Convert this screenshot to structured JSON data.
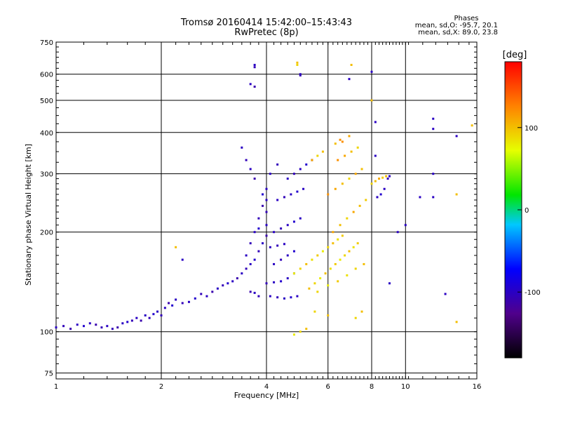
{
  "header": {
    "title": "Tromsø 20160414 15:42:00–15:43:43",
    "subtitle": "RwPretec (8p)"
  },
  "stats": {
    "heading": "Phases",
    "line_o": "mean, sd,O: -95.7, 20.1",
    "line_x": "mean, sd,X: 89.0, 23.8"
  },
  "chart_data": {
    "type": "scatter",
    "xlabel": "Frequency [MHz]",
    "ylabel": "Stationary phase Virtual Height [km]",
    "x_scale": "log",
    "y_scale": "log",
    "xlim": [
      1,
      16
    ],
    "ylim": [
      72,
      750
    ],
    "x_ticks": [
      1,
      2,
      4,
      6,
      8,
      10,
      16
    ],
    "x_tick_labels": [
      "1",
      "2",
      "4",
      "6",
      "8",
      "10",
      "16"
    ],
    "y_ticks": [
      75,
      100,
      200,
      300,
      400,
      500,
      600,
      750
    ],
    "y_tick_labels": [
      "75",
      "100",
      "200",
      "300",
      "400",
      "500",
      "600",
      "750"
    ],
    "grid": true,
    "colorbar": {
      "label": "[deg]",
      "range": [
        -180,
        180
      ],
      "ticks": [
        100,
        0,
        -100
      ],
      "tick_labels": [
        "100",
        "0",
        "-100"
      ]
    },
    "series": [
      {
        "columns": [
          "freq_MHz",
          "height_km",
          "phase_deg"
        ],
        "points": [
          [
            1.0,
            103,
            -100
          ],
          [
            1.05,
            104,
            -105
          ],
          [
            1.1,
            102,
            -110
          ],
          [
            1.15,
            105,
            -100
          ],
          [
            1.2,
            104,
            -95
          ],
          [
            1.25,
            106,
            -100
          ],
          [
            1.3,
            105,
            -110
          ],
          [
            1.35,
            103,
            -105
          ],
          [
            1.4,
            104,
            -100
          ],
          [
            1.45,
            102,
            -105
          ],
          [
            1.5,
            103,
            -110
          ],
          [
            1.55,
            106,
            -100
          ],
          [
            1.6,
            107,
            -95
          ],
          [
            1.65,
            108,
            -105
          ],
          [
            1.7,
            110,
            -100
          ],
          [
            1.75,
            108,
            -110
          ],
          [
            1.8,
            112,
            -100
          ],
          [
            1.85,
            110,
            -105
          ],
          [
            1.9,
            113,
            -95
          ],
          [
            1.95,
            115,
            -100
          ],
          [
            2.0,
            112,
            -105
          ],
          [
            2.05,
            118,
            -100
          ],
          [
            2.1,
            122,
            -110
          ],
          [
            2.15,
            120,
            -95
          ],
          [
            2.2,
            125,
            -100
          ],
          [
            2.3,
            122,
            -105
          ],
          [
            2.4,
            123,
            -100
          ],
          [
            2.5,
            126,
            -95
          ],
          [
            2.6,
            130,
            -105
          ],
          [
            2.7,
            128,
            -100
          ],
          [
            2.8,
            132,
            -110
          ],
          [
            2.9,
            135,
            -100
          ],
          [
            3.0,
            138,
            -105
          ],
          [
            3.1,
            140,
            -95
          ],
          [
            3.2,
            142,
            -100
          ],
          [
            3.3,
            145,
            -110
          ],
          [
            3.4,
            150,
            -100
          ],
          [
            3.5,
            155,
            -105
          ],
          [
            3.6,
            160,
            -100
          ],
          [
            3.7,
            165,
            -95
          ],
          [
            3.8,
            175,
            -105
          ],
          [
            3.9,
            185,
            -100
          ],
          [
            4.0,
            195,
            -110
          ],
          [
            4.0,
            210,
            -100
          ],
          [
            4.0,
            230,
            -105
          ],
          [
            4.0,
            250,
            -100
          ],
          [
            3.9,
            260,
            -95
          ],
          [
            4.0,
            270,
            -100
          ],
          [
            3.8,
            220,
            -105
          ],
          [
            3.9,
            240,
            -110
          ],
          [
            3.5,
            170,
            -100
          ],
          [
            3.6,
            185,
            -105
          ],
          [
            3.7,
            200,
            -100
          ],
          [
            3.8,
            205,
            -95
          ],
          [
            3.4,
            360,
            -100
          ],
          [
            3.5,
            330,
            -105
          ],
          [
            3.6,
            310,
            -100
          ],
          [
            3.7,
            290,
            -110
          ],
          [
            4.1,
            300,
            -100
          ],
          [
            4.3,
            320,
            -105
          ],
          [
            4.1,
            128,
            -100
          ],
          [
            4.3,
            127,
            -105
          ],
          [
            4.5,
            126,
            -100
          ],
          [
            4.7,
            127,
            -95
          ],
          [
            4.9,
            128,
            -100
          ],
          [
            3.8,
            128,
            -105
          ],
          [
            3.7,
            131,
            -100
          ],
          [
            3.6,
            132,
            -110
          ],
          [
            4.0,
            140,
            -105
          ],
          [
            4.2,
            141,
            -100
          ],
          [
            4.4,
            142,
            -95
          ],
          [
            4.6,
            145,
            -100
          ],
          [
            4.8,
            150,
            -105
          ],
          [
            4.2,
            160,
            -100
          ],
          [
            4.4,
            165,
            -105
          ],
          [
            4.6,
            170,
            -100
          ],
          [
            4.8,
            175,
            -95
          ],
          [
            4.1,
            180,
            -100
          ],
          [
            4.3,
            182,
            -105
          ],
          [
            4.5,
            184,
            -100
          ],
          [
            4.2,
            200,
            -100
          ],
          [
            4.4,
            205,
            -105
          ],
          [
            4.6,
            210,
            -100
          ],
          [
            4.8,
            215,
            -95
          ],
          [
            5.0,
            220,
            -100
          ],
          [
            4.3,
            250,
            -100
          ],
          [
            4.5,
            255,
            -105
          ],
          [
            4.7,
            260,
            -100
          ],
          [
            4.9,
            265,
            -95
          ],
          [
            5.1,
            270,
            -100
          ],
          [
            4.6,
            290,
            -100
          ],
          [
            4.8,
            300,
            -105
          ],
          [
            5.0,
            310,
            -100
          ],
          [
            5.2,
            320,
            -95
          ],
          [
            5.4,
            330,
            -100
          ],
          [
            4.8,
            150,
            80
          ],
          [
            5.0,
            155,
            90
          ],
          [
            5.2,
            160,
            100
          ],
          [
            5.4,
            165,
            85
          ],
          [
            5.6,
            170,
            95
          ],
          [
            5.8,
            175,
            80
          ],
          [
            6.0,
            180,
            90
          ],
          [
            6.2,
            185,
            100
          ],
          [
            6.4,
            190,
            85
          ],
          [
            6.6,
            195,
            95
          ],
          [
            5.5,
            140,
            90
          ],
          [
            5.7,
            145,
            80
          ],
          [
            5.9,
            150,
            100
          ],
          [
            6.1,
            155,
            85
          ],
          [
            6.3,
            160,
            95
          ],
          [
            6.5,
            165,
            80
          ],
          [
            6.7,
            170,
            90
          ],
          [
            6.9,
            175,
            100
          ],
          [
            7.1,
            180,
            85
          ],
          [
            7.3,
            185,
            95
          ],
          [
            5.3,
            135,
            100
          ],
          [
            5.6,
            132,
            90
          ],
          [
            6.0,
            138,
            80
          ],
          [
            6.4,
            142,
            95
          ],
          [
            6.8,
            148,
            85
          ],
          [
            7.2,
            155,
            90
          ],
          [
            7.6,
            160,
            100
          ],
          [
            6.2,
            200,
            110
          ],
          [
            6.5,
            210,
            100
          ],
          [
            6.8,
            220,
            90
          ],
          [
            7.1,
            230,
            110
          ],
          [
            7.4,
            240,
            100
          ],
          [
            7.7,
            250,
            95
          ],
          [
            6.0,
            260,
            120
          ],
          [
            6.3,
            270,
            110
          ],
          [
            6.6,
            280,
            100
          ],
          [
            6.9,
            290,
            90
          ],
          [
            7.2,
            300,
            110
          ],
          [
            7.5,
            310,
            100
          ],
          [
            6.4,
            330,
            120
          ],
          [
            6.7,
            340,
            110
          ],
          [
            7.0,
            350,
            100
          ],
          [
            7.3,
            360,
            90
          ],
          [
            6.5,
            380,
            120
          ],
          [
            6.9,
            390,
            110
          ],
          [
            5.8,
            350,
            100
          ],
          [
            5.6,
            340,
            90
          ],
          [
            5.4,
            330,
            110
          ],
          [
            6.3,
            370,
            100
          ],
          [
            6.6,
            375,
            120
          ],
          [
            8.0,
            280,
            90
          ],
          [
            8.2,
            285,
            100
          ],
          [
            8.4,
            290,
            110
          ],
          [
            8.6,
            292,
            95
          ],
          [
            8.8,
            295,
            100
          ],
          [
            9.0,
            295,
            -100
          ],
          [
            8.9,
            290,
            -105
          ],
          [
            8.7,
            270,
            -100
          ],
          [
            8.5,
            260,
            -95
          ],
          [
            8.3,
            255,
            -100
          ],
          [
            3.7,
            640,
            -100
          ],
          [
            3.7,
            630,
            -105
          ],
          [
            3.6,
            560,
            -100
          ],
          [
            3.7,
            550,
            -110
          ],
          [
            4.9,
            650,
            100
          ],
          [
            4.9,
            640,
            90
          ],
          [
            5.0,
            600,
            -100
          ],
          [
            5.0,
            595,
            -105
          ],
          [
            7.0,
            640,
            100
          ],
          [
            6.9,
            580,
            -100
          ],
          [
            8.0,
            610,
            -100
          ],
          [
            12.0,
            440,
            -100
          ],
          [
            12.0,
            410,
            -100
          ],
          [
            12.0,
            300,
            -100
          ],
          [
            12.0,
            255,
            -100
          ],
          [
            11.0,
            255,
            -100
          ],
          [
            14.0,
            390,
            -100
          ],
          [
            14.0,
            260,
            100
          ],
          [
            15.5,
            420,
            100
          ],
          [
            13.0,
            130,
            -100
          ],
          [
            8.2,
            340,
            -100
          ],
          [
            8.2,
            430,
            -100
          ],
          [
            8.0,
            500,
            100
          ],
          [
            5.0,
            100,
            90
          ],
          [
            5.2,
            102,
            100
          ],
          [
            4.8,
            98,
            80
          ],
          [
            5.5,
            115,
            90
          ],
          [
            6.0,
            112,
            100
          ],
          [
            7.2,
            110,
            90
          ],
          [
            7.5,
            115,
            100
          ],
          [
            9.0,
            140,
            -100
          ],
          [
            14.0,
            107,
            100
          ],
          [
            2.2,
            180,
            100
          ],
          [
            2.3,
            165,
            -100
          ],
          [
            9.5,
            200,
            -100
          ],
          [
            10.0,
            210,
            -100
          ]
        ]
      }
    ]
  }
}
